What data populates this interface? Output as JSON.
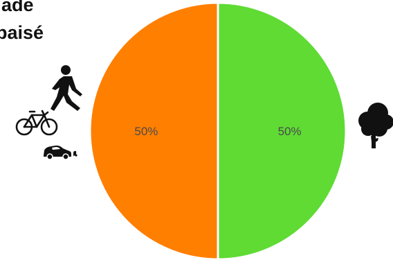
{
  "title_lines": [
    "ade",
    "paisé"
  ],
  "icons": {
    "pedestrian": "pedestrian-icon",
    "bicycle": "bicycle-icon",
    "car": "car-icon",
    "tree": "tree-icon"
  },
  "colors": {
    "orange": "#ff7f00",
    "green": "#5fdb34"
  },
  "chart_data": {
    "type": "pie",
    "categories": [
      "",
      ""
    ],
    "values": [
      50,
      50
    ],
    "labels": [
      "50%",
      "50%"
    ],
    "colors": [
      "#ff7f00",
      "#5fdb34"
    ],
    "legend": "none"
  }
}
